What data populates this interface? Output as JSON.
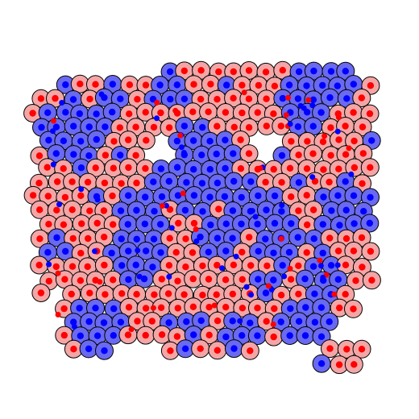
{
  "simulation": {
    "colors": {
      "outline": "#000000",
      "red_cell_fill": "#f4a6a6",
      "red_nucleus": "#ff0000",
      "blue_cell_fill": "#6a6af0",
      "blue_nucleus": "#0000ff",
      "contact_blue_dot": "#0000ff",
      "contact_red_dot": "#ff0000",
      "background": "#ffffff"
    },
    "cell_types": [
      "red",
      "blue"
    ],
    "approximate_cell_count": 300,
    "region_blob_shape": "irregular clustered cell aggregate"
  }
}
